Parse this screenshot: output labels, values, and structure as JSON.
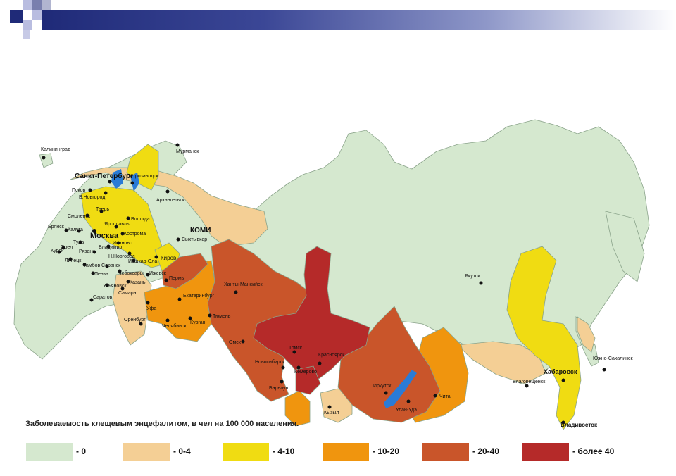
{
  "colors": {
    "zero": "#d5e8cf",
    "low": "#f4cf95",
    "mid": "#f0dc12",
    "high": "#f0950e",
    "higher": "#c9552a",
    "highest": "#b52a29",
    "water": "#2a7bd6",
    "border": "#8aa38a"
  },
  "caption": "Заболеваемость клещевым энцефалитом, в чел на 100 000 населения.",
  "legend": [
    {
      "key": "zero",
      "label": "- 0"
    },
    {
      "key": "low",
      "label": "- 0-4"
    },
    {
      "key": "mid",
      "label": "- 4-10"
    },
    {
      "key": "high",
      "label": "- 10-20"
    },
    {
      "key": "higher",
      "label": "- 20-40"
    },
    {
      "key": "highest",
      "label": "- более 40"
    }
  ],
  "cities": {
    "kaliningrad": "Калининград",
    "murmansk": "Мурманск",
    "spb": "Санкт-Петербург",
    "petrozavodsk": "Петрозаводск",
    "pskov": "Псков",
    "vnovgorod": "В.Новгород",
    "arkhangelsk": "Архангельск",
    "smolensk": "Смоленск",
    "tver": "Тверь",
    "vologda": "Вологда",
    "yaroslavl": "Ярославль",
    "kostroma": "Кострома",
    "bryansk": "Брянск",
    "kaluga": "Калуга",
    "moscow": "Москва",
    "ivanovo": "Иваново",
    "tula": "Тула",
    "vladimir": "Владимир",
    "orel": "Орел",
    "ryazan": "Рязань",
    "kursk": "Курск",
    "nnovgorod": "Н.Новгород",
    "lipetsk": "Липецк",
    "tambov": "Тамбов",
    "saransk": "Саранск",
    "yoshkar": "Йошкар-Ола",
    "kirov": "Киров",
    "komi": "КОМИ",
    "syktyvkar": "Сыктывкар",
    "penza": "Пенза",
    "cheboksary": "Чебоксары",
    "kazan": "Казань",
    "izhevsk": "Ижевск",
    "perm": "Пермь",
    "ulyanovsk": "Ульяновск",
    "samara": "Самара",
    "saratov": "Саратов",
    "ufa": "Уфа",
    "yekaterinburg": "Екатеринбург",
    "khanty": "Ханты-Мансийск",
    "orenburg": "Оренбург",
    "chelyabinsk": "Челябинск",
    "kurgan": "Курган",
    "tyumen": "Тюмень",
    "omsk": "Омск",
    "tomsk": "Томск",
    "krasnoyarsk": "Красноярск",
    "novosibirsk": "Новосибирск",
    "kemerovo": "Кемерово",
    "barnaul": "Барнаул",
    "kyzyl": "Кызыл",
    "irkutsk": "Иркутск",
    "ulanude": "Улан-Удэ",
    "chita": "Чита",
    "yakutsk": "Якутск",
    "blagoveshchensk": "Благовещенск",
    "khabarovsk": "Хабаровск",
    "yuzhno": "Южно-Сахалинск",
    "vladivostok": "Владивосток"
  }
}
